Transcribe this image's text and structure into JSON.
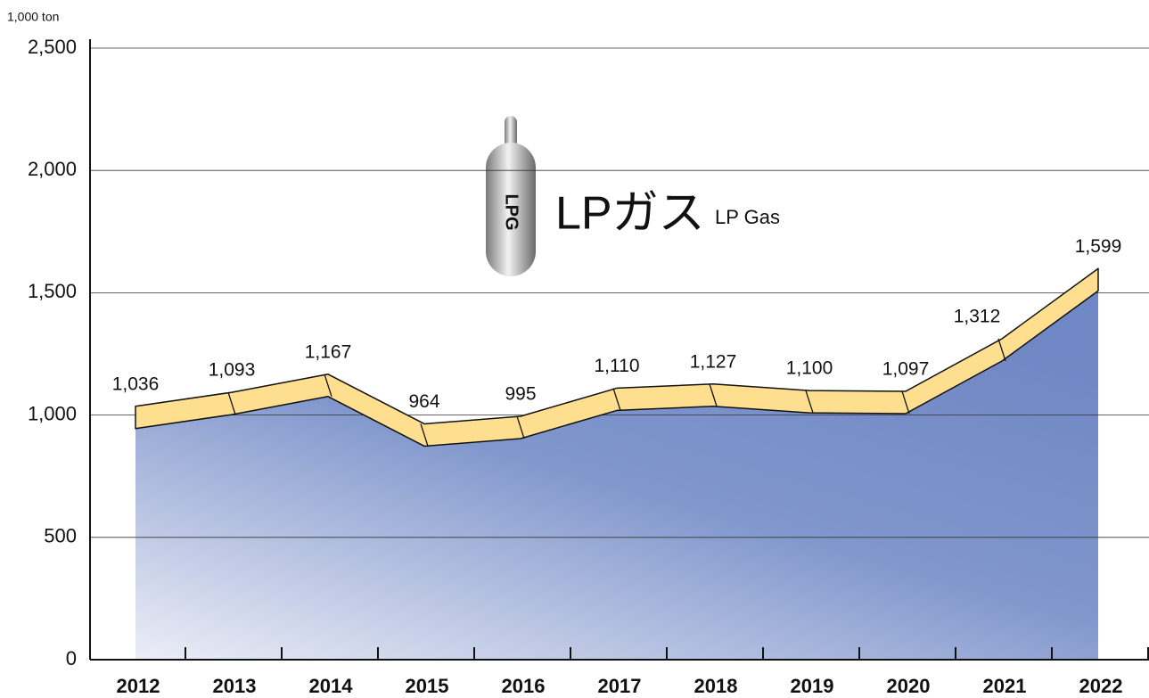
{
  "chart_data": {
    "type": "area",
    "title": "LPガス",
    "subtitle": "LP Gas",
    "y_unit": "1,000 ton",
    "icon_label": "LPG",
    "categories": [
      "2012",
      "2013",
      "2014",
      "2015",
      "2016",
      "2017",
      "2018",
      "2019",
      "2020",
      "2021",
      "2022"
    ],
    "values": [
      1036,
      1093,
      1167,
      964,
      995,
      1110,
      1127,
      1100,
      1097,
      1312,
      1599
    ],
    "value_labels": [
      "1,036",
      "1,093",
      "1,167",
      "964",
      "995",
      "1,110",
      "1,127",
      "1,100",
      "1,097",
      "1,312",
      "1,599"
    ],
    "color": "#fddf8f",
    "area_color": "#6f87c4",
    "ylim": [
      0,
      2500
    ],
    "yticks": [
      0,
      500,
      {
        "value": 1000,
        "label": "1,000"
      },
      {
        "value": 1500,
        "label": "1,500"
      },
      {
        "value": 2000,
        "label": "2,000"
      },
      {
        "value": 2500,
        "label": "2,500"
      }
    ],
    "grid": true
  }
}
